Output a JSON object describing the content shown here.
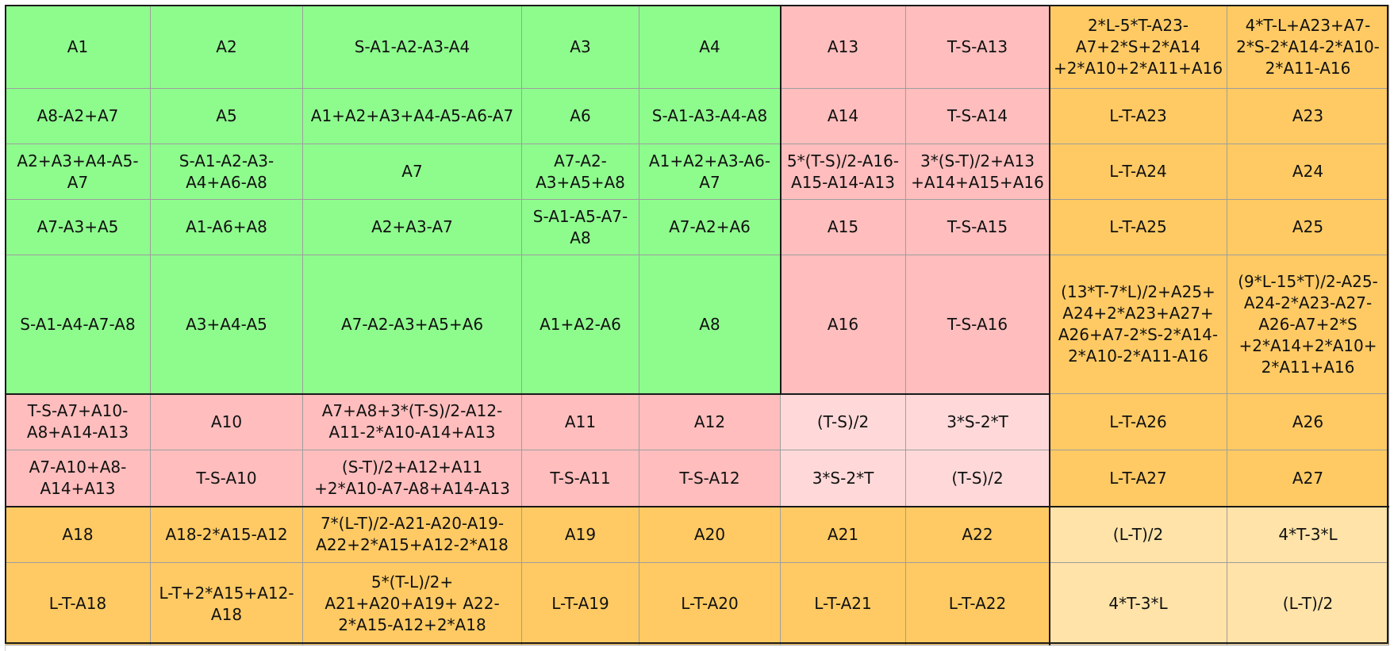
{
  "colors": {
    "green": "#8efc8d",
    "pink": "#ffbdbd",
    "light_pink": "#ffd9d9",
    "orange": "#ffca63",
    "light_orange": "#ffe3a8",
    "border": "#1a1a1a"
  },
  "rows": [
    [
      "A1",
      "A2",
      "S-A1-A2-A3-A4",
      "A3",
      "A4",
      "A13",
      "T-S-A13",
      "2*L-5*T-A23-A7+2*S+2*A14 +2*A10+2*A11+A16",
      "4*T-L+A23+A7-2*S-2*A14-2*A10-2*A11-A16"
    ],
    [
      "A8-A2+A7",
      "A5",
      "A1+A2+A3+A4-A5-A6-A7",
      "A6",
      "S-A1-A3-A4-A8",
      "A14",
      "T-S-A14",
      "L-T-A23",
      "A23"
    ],
    [
      "A2+A3+A4-A5-A7",
      "S-A1-A2-A3-A4+A6-A8",
      "A7",
      "A7-A2-A3+A5+A8",
      "A1+A2+A3-A6-A7",
      "5*(T-S)/2-A16-A15-A14-A13",
      "3*(S-T)/2+A13 +A14+A15+A16",
      "L-T-A24",
      "A24"
    ],
    [
      "A7-A3+A5",
      "A1-A6+A8",
      "A2+A3-A7",
      "S-A1-A5-A7-A8",
      "A7-A2+A6",
      "A15",
      "T-S-A15",
      "L-T-A25",
      "A25"
    ],
    [
      "S-A1-A4-A7-A8",
      "A3+A4-A5",
      "A7-A2-A3+A5+A6",
      "A1+A2-A6",
      "A8",
      "A16",
      "T-S-A16",
      "(13*T-7*L)/2+A25+ A24+2*A23+A27+ A26+A7-2*S-2*A14-2*A10-2*A11-A16",
      "(9*L-15*T)/2-A25-A24-2*A23-A27-A26-A7+2*S +2*A14+2*A10+ 2*A11+A16"
    ],
    [
      "T-S-A7+A10-A8+A14-A13",
      "A10",
      "A7+A8+3*(T-S)/2-A12-A11-2*A10-A14+A13",
      "A11",
      "A12",
      "(T-S)/2",
      "3*S-2*T",
      "L-T-A26",
      "A26"
    ],
    [
      "A7-A10+A8-A14+A13",
      "T-S-A10",
      "(S-T)/2+A12+A11 +2*A10-A7-A8+A14-A13",
      "T-S-A11",
      "T-S-A12",
      "3*S-2*T",
      "(T-S)/2",
      "L-T-A27",
      "A27"
    ],
    [
      "A18",
      "A18-2*A15-A12",
      "7*(L-T)/2-A21-A20-A19-A22+2*A15+A12-2*A18",
      "A19",
      "A20",
      "A21",
      "A22",
      "(L-T)/2",
      "4*T-3*L"
    ],
    [
      "L-T-A18",
      "L-T+2*A15+A12-A18",
      "5*(T-L)/2+ A21+A20+A19+ A22-2*A15-A12+2*A18",
      "L-T-A19",
      "L-T-A20",
      "L-T-A21",
      "L-T-A22",
      "4*T-3*L",
      "(L-T)/2"
    ]
  ]
}
